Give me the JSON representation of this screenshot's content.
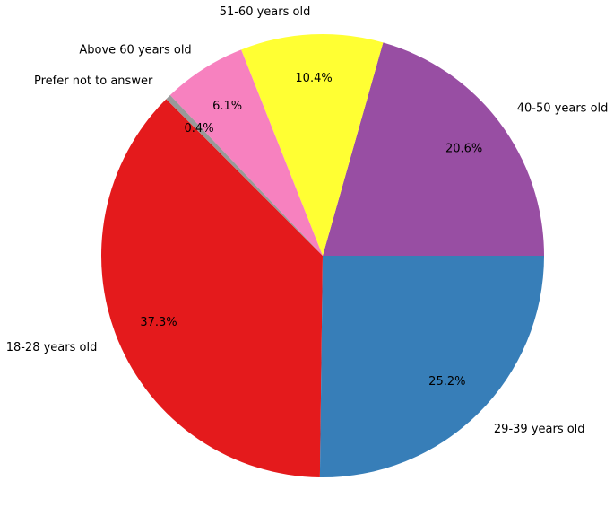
{
  "chart_data": {
    "type": "pie",
    "title": "",
    "categories": [
      "18-28 years old",
      "29-39 years old",
      "40-50 years old",
      "51-60 years old",
      "Above 60 years old",
      "Prefer not to answer"
    ],
    "values": [
      37.3,
      25.2,
      20.6,
      10.4,
      6.1,
      0.4
    ],
    "value_labels": [
      "37.3%",
      "25.2%",
      "20.6%",
      "10.4%",
      "6.1%",
      "0.4%"
    ],
    "colors": [
      "#e41a1c",
      "#377eb8",
      "#984ea3",
      "#ffff33",
      "#f781bf",
      "#999999"
    ],
    "start_angle_deg": 135,
    "direction": "counterclockwise",
    "legend": "none"
  }
}
